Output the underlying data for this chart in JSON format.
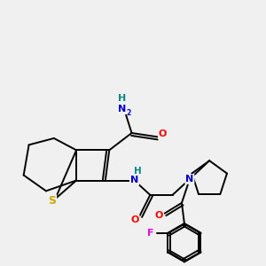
{
  "bg_color": "#f0f0f0",
  "bond_color": "#000000",
  "bond_width": 1.4,
  "atoms": {
    "S": {
      "color": "#ccaa00"
    },
    "N": {
      "color": "#0000cc"
    },
    "O": {
      "color": "#ff0000"
    },
    "F": {
      "color": "#ee00ee"
    },
    "H_teal": {
      "color": "#008888"
    }
  },
  "figsize": [
    3.0,
    3.0
  ],
  "dpi": 100
}
